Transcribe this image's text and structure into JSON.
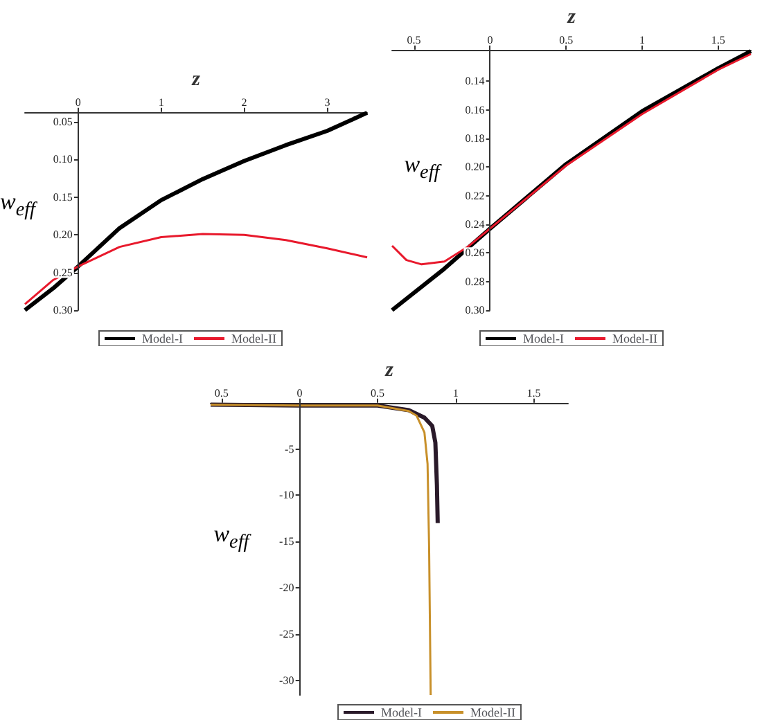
{
  "chart_data": [
    {
      "type": "line",
      "xlabel": "z",
      "ylabel": "w$_{eff}$",
      "legend": "bottom",
      "xlim": [
        -0.64,
        3.48
      ],
      "ylim": [
        -0.3,
        -0.037
      ],
      "xticks": [
        0,
        1,
        2,
        3
      ],
      "yticks": [
        {
          "value": -0.05,
          "label": "0.05"
        },
        {
          "value": -0.1,
          "label": "0.10"
        },
        {
          "value": -0.15,
          "label": "0.15"
        },
        {
          "value": -0.2,
          "label": "0.20"
        },
        {
          "value": -0.25,
          "label": "0.25"
        },
        {
          "value": -0.3,
          "label": "0.30"
        }
      ],
      "series": [
        {
          "name": "Model-I",
          "color": "#000000",
          "x": [
            -0.64,
            -0.3,
            0,
            0.5,
            1,
            1.5,
            2,
            2.5,
            3,
            3.48
          ],
          "values": [
            -0.3,
            -0.271,
            -0.242,
            -0.191,
            -0.154,
            -0.126,
            -0.102,
            -0.081,
            -0.062,
            -0.038
          ]
        },
        {
          "name": "Model-II",
          "color": "#e8192c",
          "x": [
            -0.64,
            -0.3,
            0,
            0.5,
            1,
            1.5,
            2,
            2.5,
            3,
            3.48
          ],
          "values": [
            -0.292,
            -0.26,
            -0.242,
            -0.216,
            -0.203,
            -0.199,
            -0.2,
            -0.207,
            -0.218,
            -0.23
          ]
        }
      ]
    },
    {
      "type": "line",
      "xlabel": "z",
      "ylabel": "w$_{eff}$",
      "legend": "bottom",
      "xlim": [
        -0.644,
        1.715
      ],
      "ylim": [
        -0.3,
        -0.118
      ],
      "xticks": [
        {
          "value": -0.5,
          "label": "0.5"
        },
        0,
        0.5,
        1,
        1.5
      ],
      "yticks": [
        {
          "value": -0.14,
          "label": "0.14"
        },
        {
          "value": -0.16,
          "label": "0.16"
        },
        {
          "value": -0.18,
          "label": "0.18"
        },
        {
          "value": -0.2,
          "label": "0.20"
        },
        {
          "value": -0.22,
          "label": "0.22"
        },
        {
          "value": -0.24,
          "label": "0.24"
        },
        {
          "value": -0.26,
          "label": "0.26"
        },
        {
          "value": -0.28,
          "label": "0.28"
        },
        {
          "value": -0.3,
          "label": "0.30"
        }
      ],
      "series": [
        {
          "name": "Model-I",
          "color": "#000000",
          "x": [
            -0.644,
            -0.3,
            0,
            0.5,
            1,
            1.5,
            1.715
          ],
          "values": [
            -0.3,
            -0.271,
            -0.243,
            -0.198,
            -0.161,
            -0.131,
            -0.119
          ]
        },
        {
          "name": "Model-II",
          "color": "#e8192c",
          "x": [
            -0.644,
            -0.55,
            -0.45,
            -0.3,
            -0.15,
            0,
            0.5,
            1,
            1.5,
            1.715
          ],
          "values": [
            -0.255,
            -0.265,
            -0.268,
            -0.266,
            -0.256,
            -0.243,
            -0.199,
            -0.163,
            -0.132,
            -0.121
          ]
        }
      ]
    },
    {
      "type": "line",
      "xlabel": "z",
      "ylabel": "w$_{eff}$",
      "legend": "bottom",
      "xlim": [
        -0.57,
        1.72
      ],
      "ylim": [
        -31.6,
        0
      ],
      "xticks": [
        {
          "value": -0.5,
          "label": "0.5"
        },
        0,
        0.5,
        1,
        1.5
      ],
      "yticks": [
        -5,
        -10,
        -15,
        -20,
        -25,
        -30
      ],
      "series": [
        {
          "name": "Model-I",
          "color": "#2a1a2a",
          "x": [
            -0.57,
            0,
            0.5,
            0.7,
            0.8,
            0.85,
            0.87,
            0.88,
            0.885
          ],
          "values": [
            -0.2,
            -0.3,
            -0.3,
            -0.8,
            -1.6,
            -2.5,
            -4.3,
            -8.9,
            -13
          ]
        },
        {
          "name": "Model-II",
          "color": "#c8902a",
          "x": [
            -0.57,
            0,
            0.5,
            0.7,
            0.75,
            0.8,
            0.82,
            0.83,
            0.84
          ],
          "values": [
            -0.2,
            -0.3,
            -0.3,
            -0.9,
            -1.4,
            -3.2,
            -6.6,
            -15.7,
            -31.6
          ]
        }
      ]
    }
  ]
}
